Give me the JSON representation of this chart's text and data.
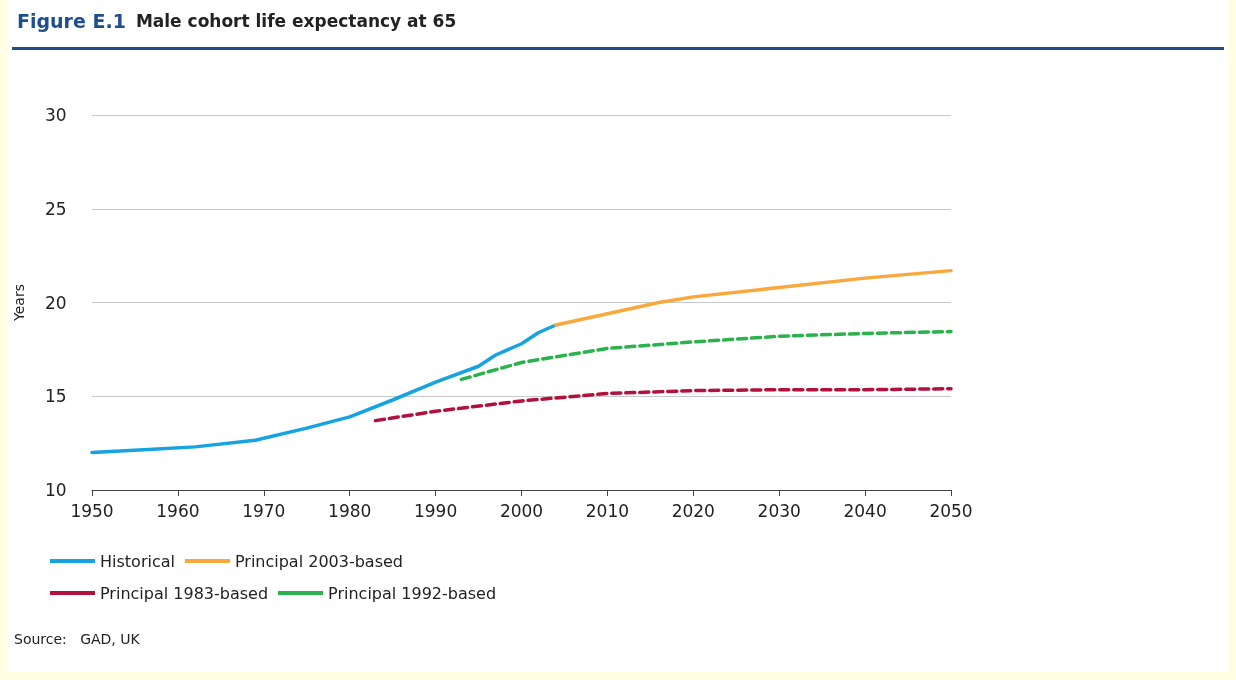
{
  "chart_data": {
    "type": "line",
    "title": "Figure E.1 Male cohort life expectancy at 65",
    "ylabel": "Years",
    "annotations": [
      "Source:   GAD, UK"
    ],
    "xlim": [
      1950,
      2050
    ],
    "xticks": [
      1950,
      1960,
      1970,
      1980,
      1990,
      2000,
      2010,
      2020,
      2030,
      2040,
      2050
    ],
    "ylim": [
      10,
      30
    ],
    "yticks": [
      10,
      15,
      20,
      25,
      30
    ],
    "grid": "y",
    "legend": "bottom",
    "marker": "none",
    "series": [
      {
        "name": "Historical",
        "color": "#16a3df",
        "line_style": "solid",
        "x": [
          1950,
          1956,
          1962,
          1969,
          1975,
          1980,
          1985,
          1990,
          1995,
          1997,
          2000,
          2002,
          2004
        ],
        "values": [
          12.0,
          12.15,
          12.3,
          12.65,
          13.3,
          13.9,
          14.8,
          15.75,
          16.6,
          17.2,
          17.8,
          18.4,
          18.8
        ]
      },
      {
        "name": "Principal 2003-based",
        "color": "#f8a83c",
        "line_style": "solid",
        "x": [
          2004,
          2010,
          2016,
          2020,
          2030,
          2040,
          2050
        ],
        "values": [
          18.8,
          19.4,
          20.0,
          20.3,
          20.8,
          21.3,
          21.7
        ]
      },
      {
        "name": "Principal 1983-based",
        "color": "#b3113d",
        "line_style": "dashed",
        "x": [
          1983,
          1990,
          2000,
          2010,
          2020,
          2030,
          2040,
          2050
        ],
        "values": [
          13.7,
          14.2,
          14.75,
          15.15,
          15.3,
          15.35,
          15.35,
          15.4
        ]
      },
      {
        "name": "Principal 1992-based",
        "color": "#2bb24c",
        "line_style": "dashed",
        "x": [
          1993,
          2000,
          2010,
          2020,
          2030,
          2040,
          2050
        ],
        "values": [
          15.9,
          16.8,
          17.55,
          17.9,
          18.2,
          18.35,
          18.45
        ]
      }
    ]
  }
}
